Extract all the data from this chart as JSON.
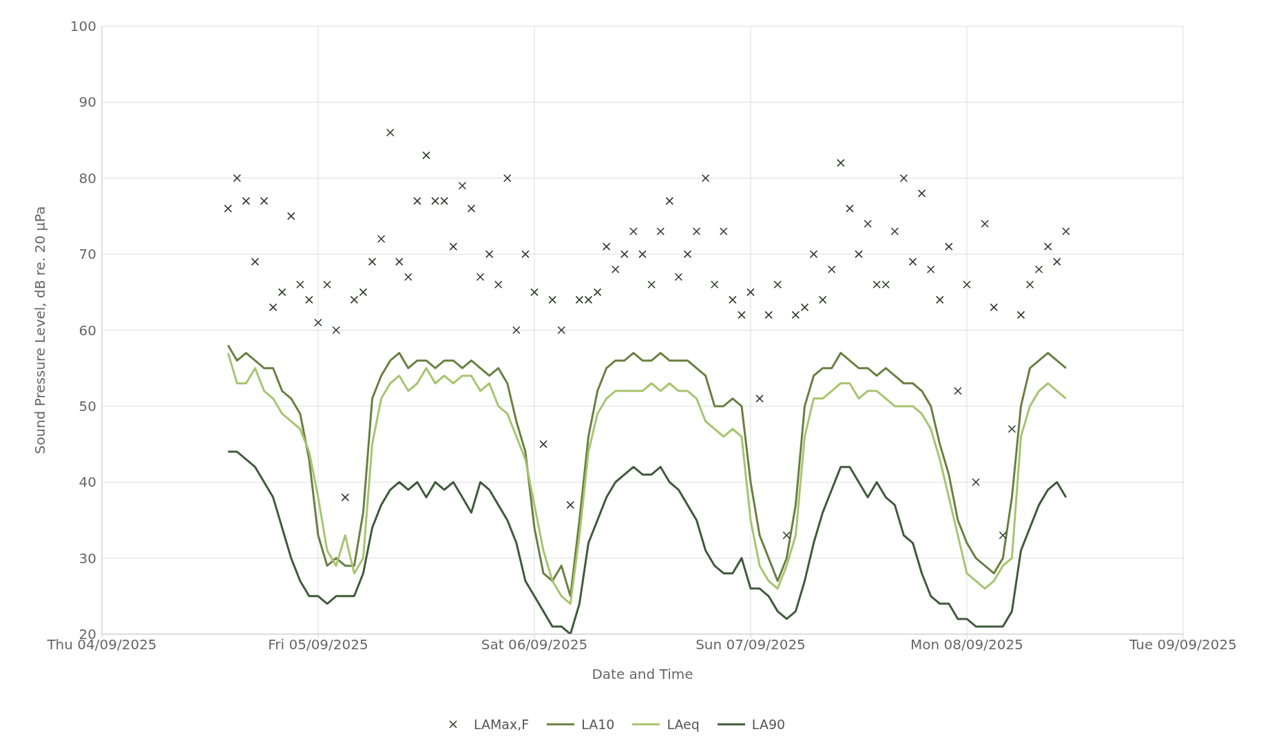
{
  "chart_data": {
    "type": "line",
    "xlabel": "Date and Time",
    "ylabel": "Sound Pressure Level, dB re. 20 µPa",
    "x": [
      "2025-09-04T14:00",
      "2025-09-04T15:00",
      "2025-09-04T16:00",
      "2025-09-04T17:00",
      "2025-09-04T18:00",
      "2025-09-04T19:00",
      "2025-09-04T20:00",
      "2025-09-04T21:00",
      "2025-09-04T22:00",
      "2025-09-04T23:00",
      "2025-09-05T00:00",
      "2025-09-05T01:00",
      "2025-09-05T02:00",
      "2025-09-05T03:00",
      "2025-09-05T04:00",
      "2025-09-05T05:00",
      "2025-09-05T06:00",
      "2025-09-05T07:00",
      "2025-09-05T08:00",
      "2025-09-05T09:00",
      "2025-09-05T10:00",
      "2025-09-05T11:00",
      "2025-09-05T12:00",
      "2025-09-05T13:00",
      "2025-09-05T14:00",
      "2025-09-05T15:00",
      "2025-09-05T16:00",
      "2025-09-05T17:00",
      "2025-09-05T18:00",
      "2025-09-05T19:00",
      "2025-09-05T20:00",
      "2025-09-05T21:00",
      "2025-09-05T22:00",
      "2025-09-05T23:00",
      "2025-09-06T00:00",
      "2025-09-06T01:00",
      "2025-09-06T02:00",
      "2025-09-06T03:00",
      "2025-09-06T04:00",
      "2025-09-06T05:00",
      "2025-09-06T06:00",
      "2025-09-06T07:00",
      "2025-09-06T08:00",
      "2025-09-06T09:00",
      "2025-09-06T10:00",
      "2025-09-06T11:00",
      "2025-09-06T12:00",
      "2025-09-06T13:00",
      "2025-09-06T14:00",
      "2025-09-06T15:00",
      "2025-09-06T16:00",
      "2025-09-06T17:00",
      "2025-09-06T18:00",
      "2025-09-06T19:00",
      "2025-09-06T20:00",
      "2025-09-06T21:00",
      "2025-09-06T22:00",
      "2025-09-06T23:00",
      "2025-09-07T00:00",
      "2025-09-07T01:00",
      "2025-09-07T02:00",
      "2025-09-07T03:00",
      "2025-09-07T04:00",
      "2025-09-07T05:00",
      "2025-09-07T06:00",
      "2025-09-07T07:00",
      "2025-09-07T08:00",
      "2025-09-07T09:00",
      "2025-09-07T10:00",
      "2025-09-07T11:00",
      "2025-09-07T12:00",
      "2025-09-07T13:00",
      "2025-09-07T14:00",
      "2025-09-07T15:00",
      "2025-09-07T16:00",
      "2025-09-07T17:00",
      "2025-09-07T18:00",
      "2025-09-07T19:00",
      "2025-09-07T20:00",
      "2025-09-07T21:00",
      "2025-09-07T22:00",
      "2025-09-07T23:00",
      "2025-09-08T00:00",
      "2025-09-08T01:00",
      "2025-09-08T02:00",
      "2025-09-08T03:00",
      "2025-09-08T04:00",
      "2025-09-08T05:00",
      "2025-09-08T06:00",
      "2025-09-08T07:00",
      "2025-09-08T08:00",
      "2025-09-08T09:00",
      "2025-09-08T10:00",
      "2025-09-08T11:00"
    ],
    "series": [
      {
        "name": "LAMax,F",
        "type": "scatter",
        "marker": "cross",
        "color": "#2b3a28",
        "values": [
          76,
          80,
          77,
          69,
          77,
          63,
          65,
          75,
          66,
          64,
          61,
          66,
          60,
          38,
          64,
          65,
          69,
          72,
          86,
          69,
          67,
          77,
          83,
          77,
          77,
          71,
          79,
          76,
          67,
          70,
          66,
          80,
          60,
          70,
          65,
          45,
          64,
          60,
          37,
          64,
          64,
          65,
          71,
          68,
          70,
          73,
          70,
          66,
          73,
          77,
          67,
          70,
          73,
          80,
          66,
          73,
          64,
          62,
          65,
          51,
          62,
          66,
          33,
          62,
          63,
          70,
          64,
          68,
          82,
          76,
          70,
          74,
          66,
          66,
          73,
          80,
          69,
          78,
          68,
          64,
          71,
          52,
          66,
          40,
          74,
          63,
          33,
          47,
          62,
          66,
          68,
          71,
          69,
          73
        ]
      },
      {
        "name": "LA10",
        "marker": "none",
        "color": "#687f3f",
        "values": [
          58,
          56,
          57,
          56,
          55,
          55,
          52,
          51,
          49,
          43,
          33,
          29,
          30,
          29,
          29,
          36,
          51,
          54,
          56,
          57,
          55,
          56,
          56,
          55,
          56,
          56,
          55,
          56,
          55,
          54,
          55,
          53,
          48,
          44,
          34,
          28,
          27,
          29,
          25,
          35,
          46,
          52,
          55,
          56,
          56,
          57,
          56,
          56,
          57,
          56,
          56,
          56,
          55,
          54,
          50,
          50,
          51,
          50,
          40,
          33,
          30,
          27,
          30,
          37,
          50,
          54,
          55,
          55,
          57,
          56,
          55,
          55,
          54,
          55,
          54,
          53,
          53,
          52,
          50,
          45,
          41,
          35,
          32,
          30,
          29,
          28,
          30,
          38,
          50,
          55,
          56,
          57,
          56,
          55
        ]
      },
      {
        "name": "LAeq",
        "marker": "none",
        "color": "#a6c46f",
        "values": [
          57,
          53,
          53,
          55,
          52,
          51,
          49,
          48,
          47,
          44,
          38,
          31,
          29,
          33,
          28,
          30,
          45,
          51,
          53,
          54,
          52,
          53,
          55,
          53,
          54,
          53,
          54,
          54,
          52,
          53,
          50,
          49,
          46,
          43,
          37,
          31,
          27,
          25,
          24,
          33,
          44,
          49,
          51,
          52,
          52,
          52,
          52,
          53,
          52,
          53,
          52,
          52,
          51,
          48,
          47,
          46,
          47,
          46,
          35,
          29,
          27,
          26,
          29,
          33,
          46,
          51,
          51,
          52,
          53,
          53,
          51,
          52,
          52,
          51,
          50,
          50,
          50,
          49,
          47,
          43,
          38,
          33,
          28,
          27,
          26,
          27,
          29,
          30,
          46,
          50,
          52,
          53,
          52,
          51
        ]
      },
      {
        "name": "LA90",
        "marker": "none",
        "color": "#3e5a3a",
        "values": [
          44,
          44,
          43,
          42,
          40,
          38,
          34,
          30,
          27,
          25,
          25,
          24,
          25,
          25,
          25,
          28,
          34,
          37,
          39,
          40,
          39,
          40,
          38,
          40,
          39,
          40,
          38,
          36,
          40,
          39,
          37,
          35,
          32,
          27,
          25,
          23,
          21,
          21,
          20,
          24,
          32,
          35,
          38,
          40,
          41,
          42,
          41,
          41,
          42,
          40,
          39,
          37,
          35,
          31,
          29,
          28,
          28,
          30,
          26,
          26,
          25,
          23,
          22,
          23,
          27,
          32,
          36,
          39,
          42,
          42,
          40,
          38,
          40,
          38,
          37,
          33,
          32,
          28,
          25,
          24,
          24,
          22,
          22,
          21,
          21,
          21,
          21,
          23,
          31,
          34,
          37,
          39,
          40,
          38
        ]
      }
    ],
    "xlim": [
      "2025-09-04",
      "2025-09-09"
    ],
    "xticks": [
      {
        "value": "2025-09-04",
        "label": "Thu 04/09/2025"
      },
      {
        "value": "2025-09-05",
        "label": "Fri 05/09/2025"
      },
      {
        "value": "2025-09-06",
        "label": "Sat 06/09/2025"
      },
      {
        "value": "2025-09-07",
        "label": "Sun 07/09/2025"
      },
      {
        "value": "2025-09-08",
        "label": "Mon 08/09/2025"
      },
      {
        "value": "2025-09-09",
        "label": "Tue 09/09/2025"
      }
    ],
    "ylim": [
      20,
      100
    ],
    "yticks": [
      20,
      30,
      40,
      50,
      60,
      70,
      80,
      90,
      100
    ],
    "grid": true,
    "legend": "bottom"
  }
}
